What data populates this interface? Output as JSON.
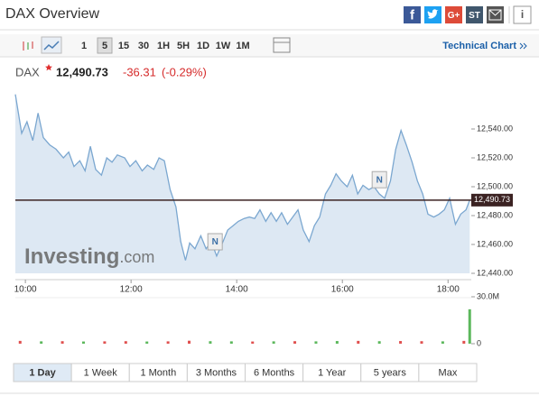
{
  "header": {
    "title": "DAX Overview",
    "share": [
      "f",
      "G+",
      "ST"
    ]
  },
  "toolbar": {
    "intervals": [
      "1",
      "5",
      "15",
      "30",
      "1H",
      "5H",
      "1D",
      "1W",
      "1M"
    ],
    "selected": 1,
    "technical_chart": "Technical Chart"
  },
  "quote": {
    "symbol": "DAX",
    "price": "12,490.73",
    "change": "-36.31",
    "change_percent": "(-0.29%)"
  },
  "watermark": {
    "brand": "Investing",
    "suffix": ".com"
  },
  "chart_data": [
    {
      "type": "line",
      "x": [
        9.81,
        9.93,
        10.03,
        10.14,
        10.24,
        10.34,
        10.46,
        10.58,
        10.72,
        10.82,
        10.92,
        11.03,
        11.13,
        11.23,
        11.33,
        11.44,
        11.54,
        11.64,
        11.74,
        11.88,
        11.98,
        12.09,
        12.21,
        12.31,
        12.43,
        12.53,
        12.63,
        12.74,
        12.85,
        12.94,
        13.03,
        13.11,
        13.21,
        13.32,
        13.42,
        13.52,
        13.62,
        13.73,
        13.83,
        13.93,
        14.03,
        14.14,
        14.24,
        14.34,
        14.44,
        14.55,
        14.65,
        14.75,
        14.85,
        14.96,
        15.06,
        15.16,
        15.26,
        15.37,
        15.47,
        15.57,
        15.68,
        15.78,
        15.88,
        15.98,
        16.09,
        16.19,
        16.29,
        16.39,
        16.5,
        16.6,
        16.7,
        16.8,
        16.91,
        17.01,
        17.11,
        17.21,
        17.32,
        17.42,
        17.52,
        17.62,
        17.73,
        17.83,
        17.93,
        18.03,
        18.14,
        18.24,
        18.34,
        18.41
      ],
      "series": [
        {
          "color": "#7ba7d0",
          "values": [
            12564,
            12537,
            12545,
            12532,
            12551,
            12534,
            12529,
            12526,
            12520,
            12524,
            12514,
            12518,
            12511,
            12528,
            12512,
            12508,
            12520,
            12517,
            12522,
            12520,
            12514,
            12518,
            12511,
            12515,
            12512,
            12520,
            12518,
            12498,
            12486,
            12462,
            12449,
            12461,
            12457,
            12466,
            12457,
            12462,
            12452,
            12461,
            12470,
            12473,
            12476,
            12478,
            12479,
            12478,
            12484,
            12476,
            12482,
            12476,
            12482,
            12474,
            12479,
            12484,
            12470,
            12462,
            12473,
            12479,
            12495,
            12501,
            12509,
            12504,
            12500,
            12508,
            12495,
            12501,
            12498,
            12500,
            12495,
            12492,
            12504,
            12526,
            12539,
            12529,
            12517,
            12504,
            12495,
            12481,
            12479,
            12481,
            12484,
            12492,
            12474,
            12481,
            12484,
            12490.73
          ]
        }
      ],
      "fill": "#dde8f3",
      "xlim": [
        9.81,
        18.44
      ],
      "xticks": [
        {
          "value": 10,
          "label": "10:00"
        },
        {
          "value": 12,
          "label": "12:00"
        },
        {
          "value": 14,
          "label": "14:00"
        },
        {
          "value": 16,
          "label": "16:00"
        },
        {
          "value": 18,
          "label": "18:00"
        }
      ],
      "ylim": [
        12440,
        12570
      ],
      "yticks": [
        {
          "value": 12540,
          "label": "12,540.00"
        },
        {
          "value": 12520,
          "label": "12,520.00"
        },
        {
          "value": 12500,
          "label": "12,500.00"
        },
        {
          "value": 12480,
          "label": "12,480.00"
        },
        {
          "value": 12460,
          "label": "12,460.00"
        },
        {
          "value": 12440,
          "label": "12,440.00"
        }
      ],
      "last": {
        "value": 12490.73,
        "label": "12,490.73"
      },
      "last_color": "#3b2222",
      "annotations": [
        {
          "x": 13.59,
          "y": 12460,
          "label": "N"
        },
        {
          "x": 16.7,
          "y": 12503,
          "label": "N"
        }
      ]
    },
    {
      "type": "bar",
      "x": [
        9.9,
        10.3,
        10.7,
        11.1,
        11.5,
        11.9,
        12.3,
        12.7,
        13.1,
        13.5,
        13.9,
        14.3,
        14.7,
        15.1,
        15.5,
        15.9,
        16.3,
        16.7,
        17.1,
        17.5,
        17.9,
        18.3,
        18.41
      ],
      "values": [
        1800000,
        1500000,
        1600000,
        1400000,
        1500000,
        1600000,
        1400000,
        1500000,
        1900000,
        1600000,
        1500000,
        1400000,
        1500000,
        1600000,
        1500000,
        1700000,
        1800000,
        1600000,
        1700000,
        1600000,
        1500000,
        1800000,
        22000000
      ],
      "colors": [
        "#e0504f",
        "#5cb85c",
        "#e0504f",
        "#5cb85c",
        "#e0504f",
        "#e0504f",
        "#5cb85c",
        "#e0504f",
        "#e0504f",
        "#5cb85c",
        "#5cb85c",
        "#e0504f",
        "#5cb85c",
        "#e0504f",
        "#5cb85c",
        "#5cb85c",
        "#e0504f",
        "#5cb85c",
        "#e0504f",
        "#e0504f",
        "#5cb85c",
        "#e0504f",
        "#5cb85c"
      ],
      "ylim": [
        0,
        30000000
      ],
      "yticks": [
        {
          "value": 30000000,
          "label": "30.0M"
        },
        0
      ]
    }
  ],
  "ranges": {
    "labels": [
      "1 Day",
      "1 Week",
      "1 Month",
      "3 Months",
      "6 Months",
      "1 Year",
      "5 years",
      "Max"
    ],
    "selected": 0
  }
}
